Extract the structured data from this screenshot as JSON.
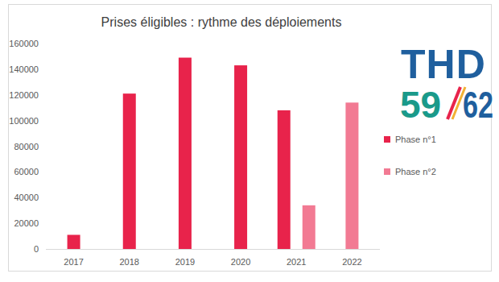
{
  "chart_data": {
    "type": "bar",
    "title": "Prises éligibles : rythme des déploiements",
    "categories": [
      "2017",
      "2018",
      "2019",
      "2020",
      "2021",
      "2022"
    ],
    "series": [
      {
        "name": "Phase n°1",
        "color": "#e8234b",
        "values": [
          11000,
          121000,
          149000,
          143000,
          108000,
          null
        ]
      },
      {
        "name": "Phase n°2",
        "color": "#f27a93",
        "values": [
          null,
          null,
          null,
          null,
          34000,
          114000
        ]
      }
    ],
    "ylim": [
      0,
      160000
    ],
    "yticks": [
      0,
      20000,
      40000,
      60000,
      80000,
      100000,
      120000,
      140000,
      160000
    ],
    "grid": false,
    "legend": "right"
  },
  "logo": {
    "top": "THD",
    "left": "59",
    "right": "62"
  }
}
